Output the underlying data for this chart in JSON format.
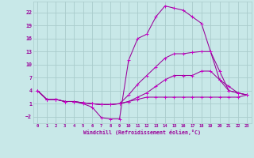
{
  "background_color": "#c8e8e8",
  "grid_color": "#aacccc",
  "line_color": "#990099",
  "marker_color": "#cc00cc",
  "xlabel": "Windchill (Refroidissement éolien,°C)",
  "xlim": [
    -0.5,
    23.5
  ],
  "ylim": [
    -3.5,
    24.5
  ],
  "yticks": [
    -2,
    1,
    4,
    7,
    10,
    13,
    16,
    19,
    22
  ],
  "xticks": [
    0,
    1,
    2,
    3,
    4,
    5,
    6,
    7,
    8,
    9,
    10,
    11,
    12,
    13,
    14,
    15,
    16,
    17,
    18,
    19,
    20,
    21,
    22,
    23
  ],
  "lines": [
    {
      "x": [
        0,
        1,
        2,
        3,
        4,
        5,
        6,
        7,
        8,
        9,
        10,
        11,
        12,
        13,
        14,
        15,
        16,
        17,
        18,
        19,
        20,
        21,
        22,
        23
      ],
      "y": [
        4,
        2,
        2,
        1.5,
        1.5,
        1.0,
        0.2,
        -2.2,
        -2.5,
        -2.5,
        11,
        16,
        17,
        21,
        23.5,
        23,
        22.5,
        21,
        19.5,
        13,
        8.5,
        4.0,
        3.5,
        3.0
      ]
    },
    {
      "x": [
        0,
        1,
        2,
        3,
        4,
        5,
        6,
        7,
        8,
        9,
        10,
        11,
        12,
        13,
        14,
        15,
        16,
        17,
        18,
        19,
        20,
        21,
        22,
        23
      ],
      "y": [
        4,
        2,
        2,
        1.5,
        1.5,
        1.2,
        1.0,
        0.8,
        0.8,
        1.0,
        3.0,
        5.5,
        7.5,
        9.5,
        11.5,
        12.5,
        12.5,
        12.8,
        13.0,
        13.0,
        6.5,
        5.0,
        3.5,
        3.0
      ]
    },
    {
      "x": [
        0,
        1,
        2,
        3,
        4,
        5,
        6,
        7,
        8,
        9,
        10,
        11,
        12,
        13,
        14,
        15,
        16,
        17,
        18,
        19,
        20,
        21,
        22,
        23
      ],
      "y": [
        4,
        2,
        2,
        1.5,
        1.5,
        1.2,
        1.0,
        0.8,
        0.8,
        1.0,
        1.5,
        2.5,
        3.5,
        5.0,
        6.5,
        7.5,
        7.5,
        7.5,
        8.5,
        8.5,
        6.5,
        4.0,
        3.5,
        3.0
      ]
    },
    {
      "x": [
        0,
        1,
        2,
        3,
        4,
        5,
        6,
        7,
        8,
        9,
        10,
        11,
        12,
        13,
        14,
        15,
        16,
        17,
        18,
        19,
        20,
        21,
        22,
        23
      ],
      "y": [
        4,
        2,
        2,
        1.5,
        1.5,
        1.2,
        1.0,
        0.8,
        0.8,
        1.0,
        1.5,
        2.0,
        2.5,
        2.5,
        2.5,
        2.5,
        2.5,
        2.5,
        2.5,
        2.5,
        2.5,
        2.5,
        2.5,
        3.0
      ]
    }
  ]
}
